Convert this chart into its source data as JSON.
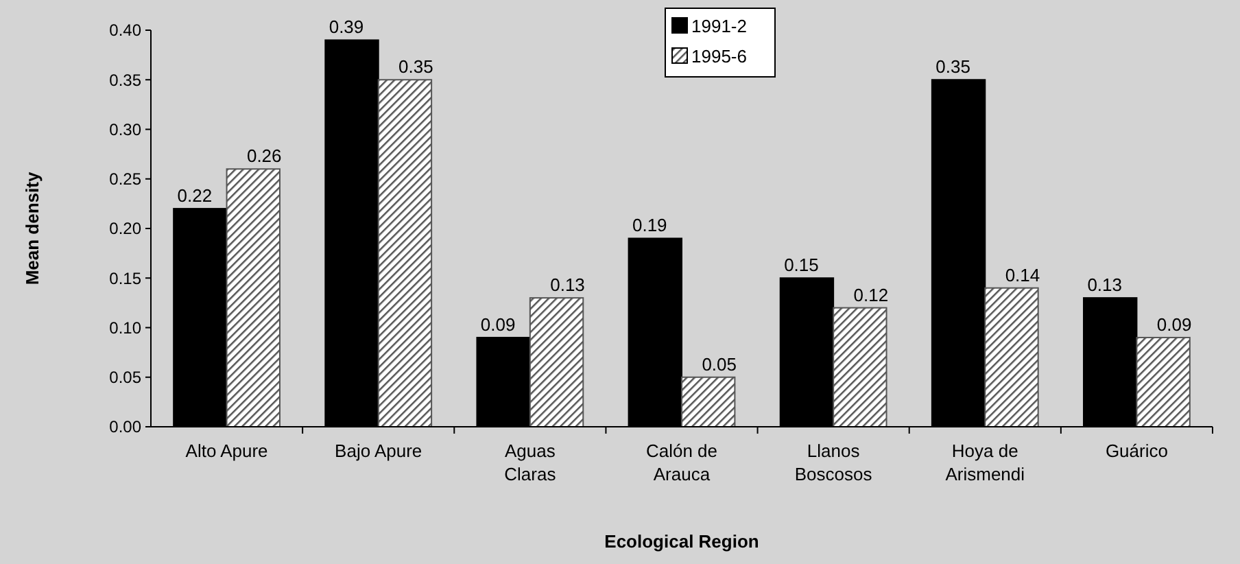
{
  "chart_data": {
    "type": "bar",
    "xlabel": "Ecological Region",
    "ylabel": "Mean density",
    "categories": [
      "Alto Apure",
      "Bajo Apure",
      "Aguas Claras",
      "Calón de Arauca",
      "Llanos Boscosos",
      "Hoya de Arismendi",
      "Guárico"
    ],
    "series": [
      {
        "name": "1991-2",
        "color": "#000000",
        "values": [
          0.22,
          0.39,
          0.09,
          0.19,
          0.15,
          0.35,
          0.13
        ]
      },
      {
        "name": "1995-6",
        "color": "#555555",
        "values": [
          0.26,
          0.35,
          0.13,
          0.05,
          0.12,
          0.14,
          0.09
        ]
      }
    ],
    "ylim": [
      0,
      0.4
    ],
    "yticks": [
      {
        "value": 0,
        "label": "0.00"
      },
      {
        "value": 0.05,
        "label": "0.05"
      },
      {
        "value": 0.1,
        "label": "0.10"
      },
      {
        "value": 0.15,
        "label": "0.15"
      },
      {
        "value": 0.2,
        "label": "0.20"
      },
      {
        "value": 0.25,
        "label": "0.25"
      },
      {
        "value": 0.3,
        "label": "0.30"
      },
      {
        "value": 0.35,
        "label": "0.35"
      },
      {
        "value": 0.4,
        "label": "0.40"
      }
    ],
    "data_labels": true,
    "legend": "top",
    "grid": false
  }
}
